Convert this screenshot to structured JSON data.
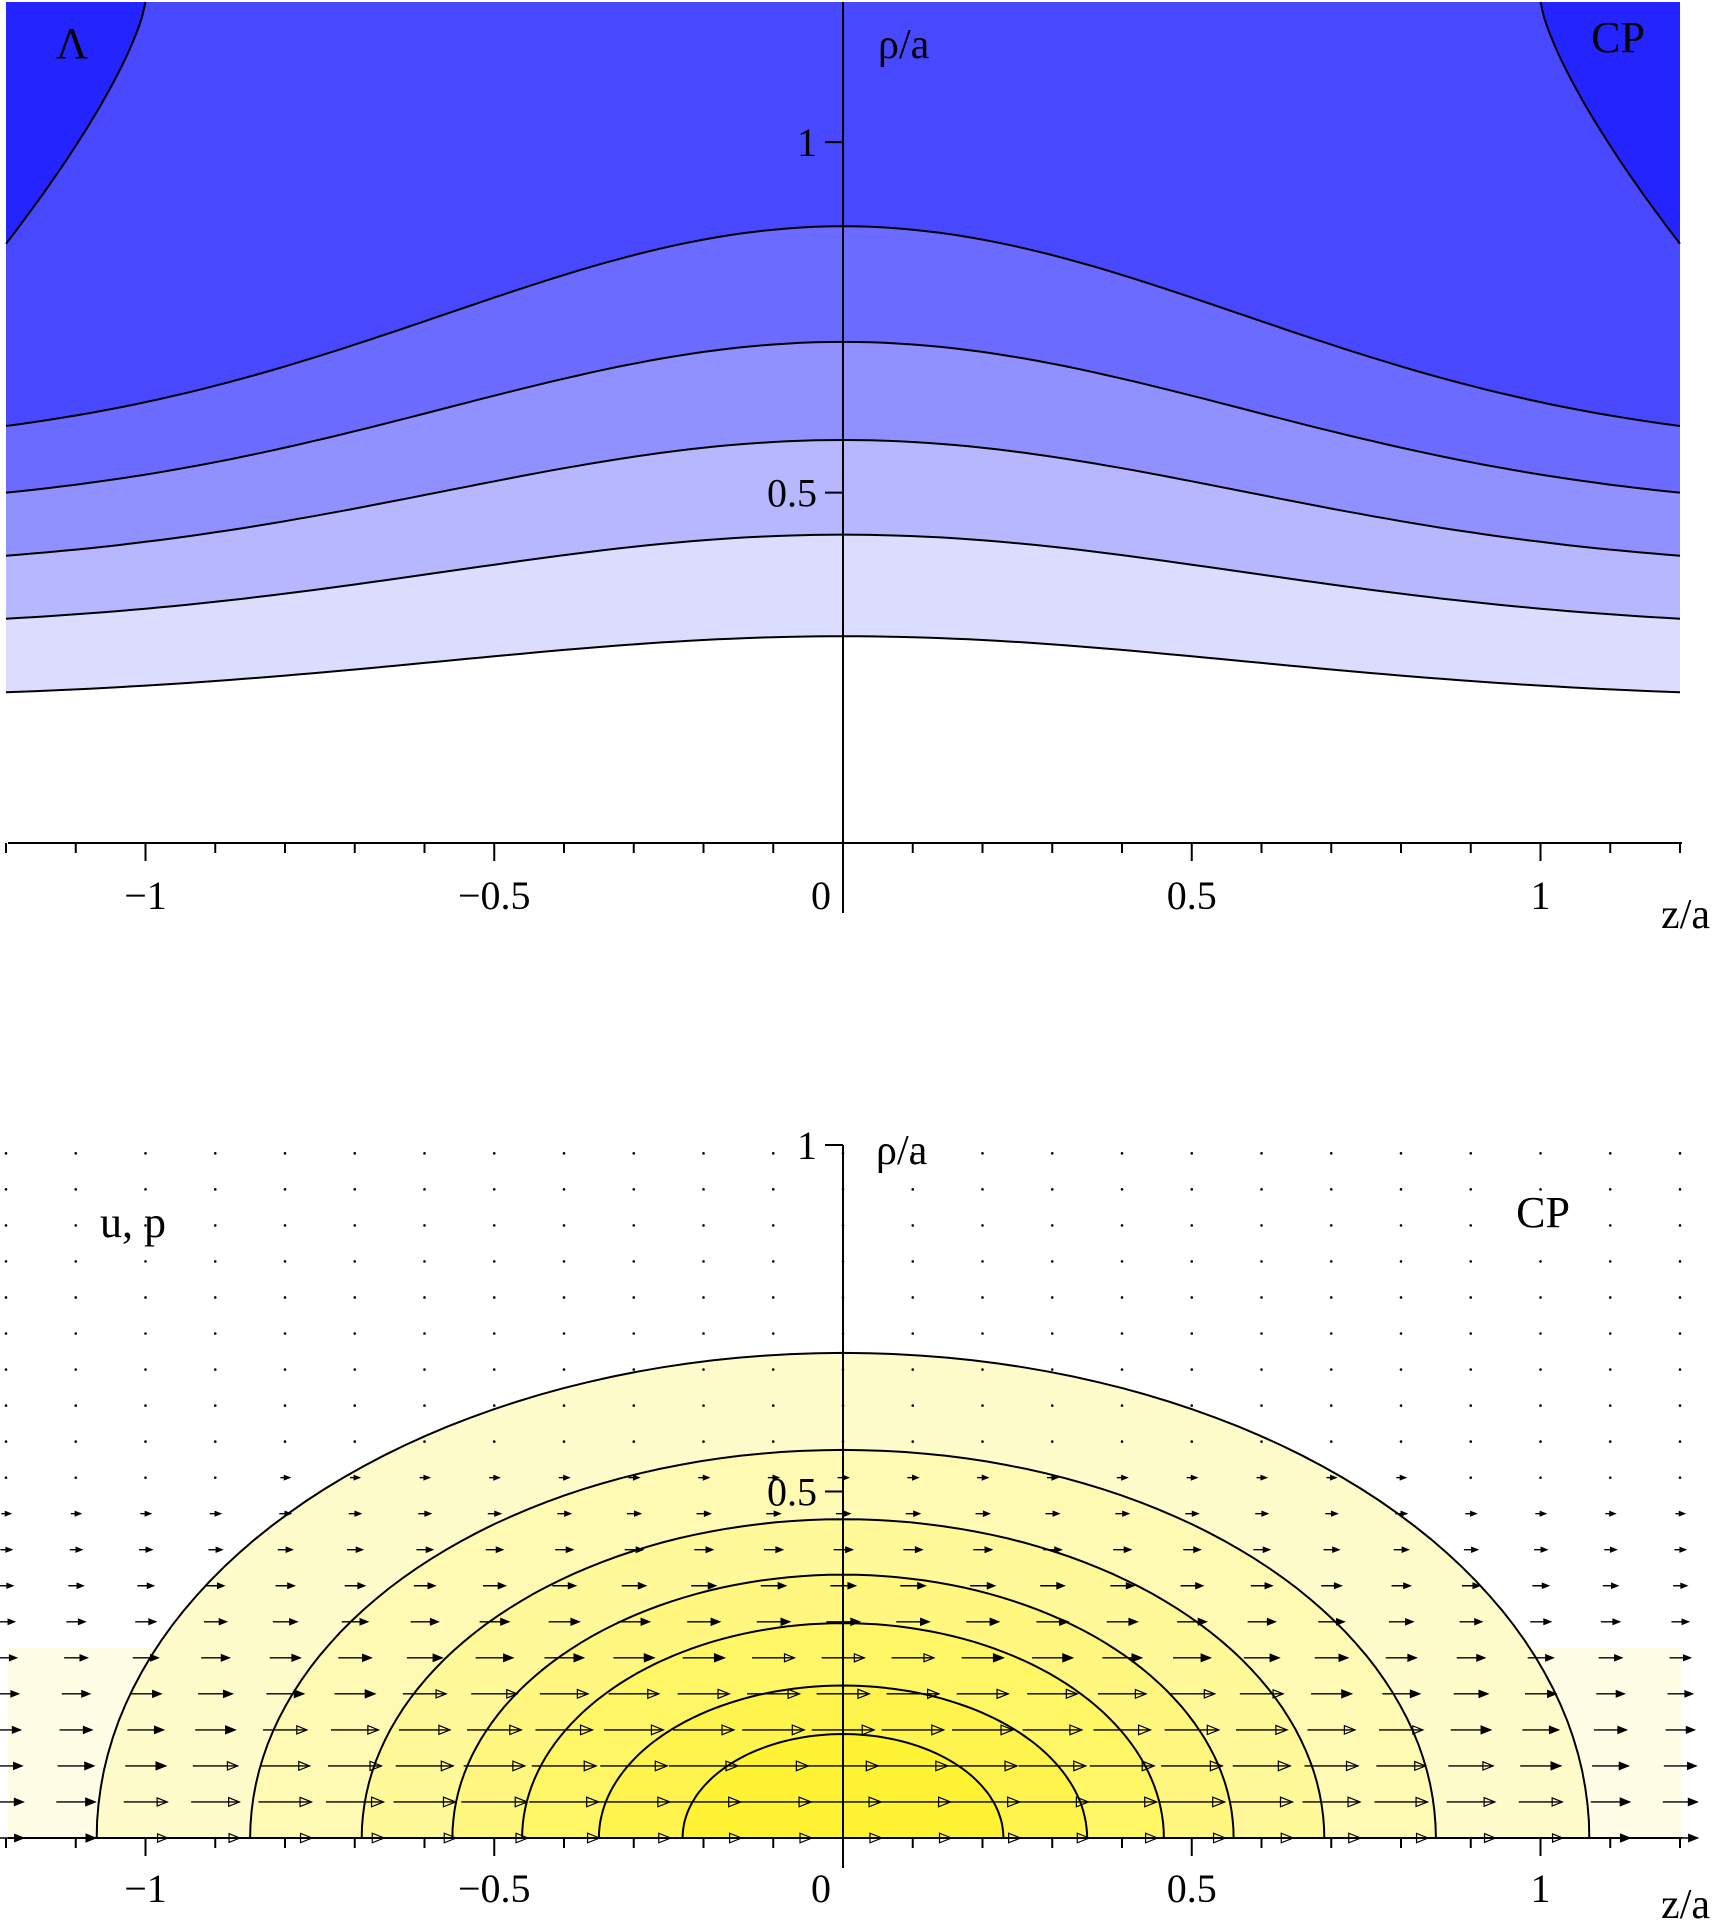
{
  "chart_data": [
    {
      "type": "contour",
      "panel_label": "Λ",
      "panel_tag": "CP",
      "xlabel": "z/a",
      "ylabel": "ρ/a",
      "xlim": [
        -1.2,
        1.2
      ],
      "ylim": [
        0,
        1.2
      ],
      "x_ticks": [
        -1,
        -0.5,
        0,
        0.5,
        1
      ],
      "x_tick_labels": [
        "−1",
        "−0.5",
        "0",
        "0.5",
        "1"
      ],
      "y_ticks": [
        0.5,
        1
      ],
      "y_tick_labels": [
        "0.5",
        "1"
      ],
      "fill_colors": [
        "#dcdcff",
        "#b7b7ff",
        "#9090ff",
        "#6b6bff",
        "#4848ff",
        "#2424ff"
      ],
      "contours": [
        {
          "rho_at_z0": 0.295,
          "rho_at_edge": 0.215
        },
        {
          "rho_at_z0": 0.44,
          "rho_at_edge": 0.32
        },
        {
          "rho_at_z0": 0.575,
          "rho_at_edge": 0.41
        },
        {
          "rho_at_z0": 0.715,
          "rho_at_edge": 0.5
        },
        {
          "rho_at_z0": 0.88,
          "rho_at_edge": 0.595
        },
        {
          "corner_curve": true,
          "rho_at_edge": 0.855,
          "z_at_top": 1.0
        }
      ]
    },
    {
      "type": "contour+quiver",
      "panel_label": "u, p",
      "panel_tag": "CP",
      "xlabel": "z/a",
      "ylabel": "ρ/a",
      "xlim": [
        -1.2,
        1.2
      ],
      "ylim": [
        0,
        1
      ],
      "x_ticks": [
        -1,
        -0.5,
        0,
        0.5,
        1
      ],
      "x_tick_labels": [
        "−1",
        "−0.5",
        "0",
        "0.5",
        "1"
      ],
      "y_ticks": [
        0.5,
        1
      ],
      "y_tick_labels": [
        "0.5",
        "1"
      ],
      "fill_colors": [
        "#fffde6",
        "#fffccc",
        "#fffab3",
        "#fff999",
        "#fff780",
        "#fff666",
        "#fff44d",
        "#fff333",
        "#fff11a",
        "#ffff00"
      ],
      "contours": [
        {
          "z_half_width": 1.07,
          "rho_height": 0.7
        },
        {
          "z_half_width": 0.85,
          "rho_height": 0.56
        },
        {
          "z_half_width": 0.69,
          "rho_height": 0.46
        },
        {
          "z_half_width": 0.56,
          "rho_height": 0.38
        },
        {
          "z_half_width": 0.46,
          "rho_height": 0.31
        },
        {
          "z_half_width": 0.35,
          "rho_height": 0.22
        },
        {
          "z_half_width": 0.23,
          "rho_height": 0.15
        }
      ],
      "arrow_grid": {
        "dz": 0.1,
        "drho": 0.052,
        "direction": "+z"
      }
    }
  ]
}
